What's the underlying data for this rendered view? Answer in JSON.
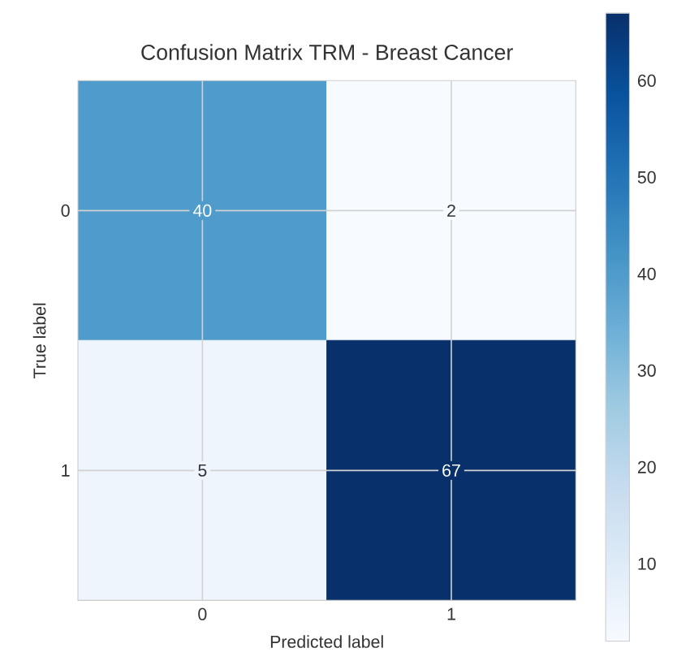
{
  "chart_data": {
    "type": "heatmap",
    "title": "Confusion Matrix TRM - Breast Cancer",
    "xlabel": "Predicted label",
    "ylabel": "True label",
    "categories": [
      "0",
      "1"
    ],
    "y_categories": [
      "0",
      "1"
    ],
    "cells": [
      [
        40,
        2
      ],
      [
        5,
        67
      ]
    ],
    "data_labels": true,
    "grid": true,
    "clim": [
      2,
      67
    ],
    "cticks": [
      10,
      20,
      30,
      40,
      50,
      60
    ]
  }
}
